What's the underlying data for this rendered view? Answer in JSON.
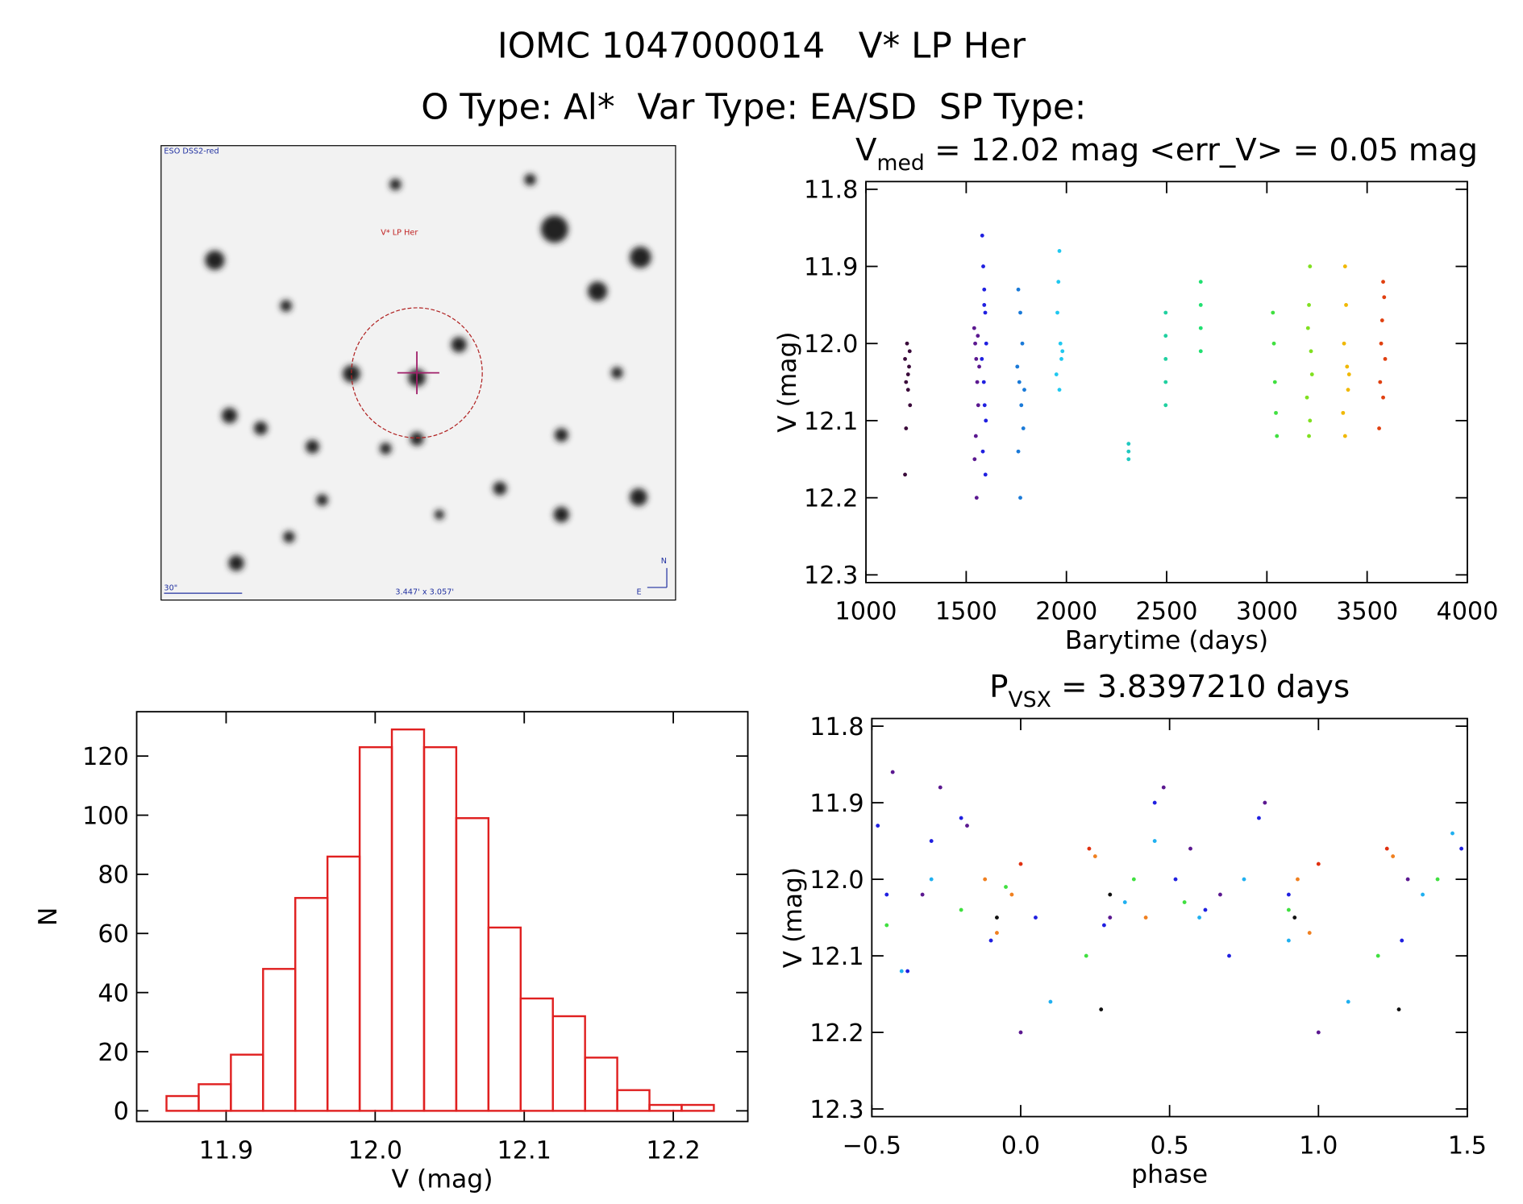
{
  "title": "IOMC 1047000014   V* LP Her",
  "subtitle": "O Type: Al*  Var Type: EA/SD  SP Type:",
  "finder": {
    "survey": "ESO DSS2-red",
    "target": "V* LP Her",
    "scale": "30\"",
    "size": "3.447' x 3.057'",
    "north": "N",
    "east": "E"
  },
  "chart_data": [
    {
      "type": "scatter",
      "title": "V",
      "title_subscript": "med",
      "title_rest": " = 12.02 mag <err_V> = 0.05 mag",
      "x_label": "Barytime (days)",
      "y_label": "V (mag)",
      "xlim": [
        1000,
        4000
      ],
      "xticks": [
        1000,
        1500,
        2000,
        2500,
        3000,
        3500,
        4000
      ],
      "ylim": [
        12.31,
        11.79
      ],
      "yticks": [
        11.8,
        11.9,
        {
          "value": 12,
          "label": "12.0"
        },
        12.1,
        12.2,
        12.3
      ],
      "series": [
        {
          "color": "#3a0a3a",
          "x": [
            1195,
            1200,
            1205,
            1210,
            1215,
            1220,
            1200,
            1210,
            1195,
            1218
          ],
          "values": [
            12.02,
            12.05,
            12.0,
            12.04,
            12.03,
            12.08,
            12.11,
            12.06,
            12.17,
            12.01
          ]
        },
        {
          "color": "#5b1890",
          "x": [
            1540,
            1545,
            1550,
            1555,
            1560,
            1548,
            1542,
            1552,
            1558,
            1565
          ],
          "values": [
            11.98,
            12.0,
            12.02,
            12.05,
            12.08,
            12.12,
            12.15,
            12.2,
            11.99,
            12.03
          ]
        },
        {
          "color": "#2020e0",
          "x": [
            1580,
            1585,
            1590,
            1595,
            1600,
            1578,
            1588,
            1592,
            1598,
            1583,
            1596,
            1590
          ],
          "values": [
            11.86,
            11.9,
            11.93,
            11.96,
            12.0,
            12.02,
            12.05,
            12.08,
            12.1,
            12.14,
            12.17,
            11.95
          ]
        },
        {
          "color": "#1a7ad8",
          "x": [
            1760,
            1770,
            1780,
            1755,
            1765,
            1775,
            1785,
            1760,
            1770,
            1790
          ],
          "values": [
            11.93,
            11.96,
            12.0,
            12.03,
            12.05,
            12.08,
            12.11,
            12.14,
            12.2,
            12.06
          ]
        },
        {
          "color": "#20c8f0",
          "x": [
            1965,
            1960,
            1955,
            1970,
            1975,
            1950,
            1965,
            1980
          ],
          "values": [
            11.88,
            11.92,
            11.96,
            12.0,
            12.02,
            12.04,
            12.06,
            12.01
          ]
        },
        {
          "color": "#20c8c0",
          "x": [
            2310,
            2310,
            2310
          ],
          "values": [
            12.13,
            12.14,
            12.15
          ]
        },
        {
          "color": "#20d0a0",
          "x": [
            2495,
            2495,
            2495,
            2495,
            2495
          ],
          "values": [
            11.96,
            11.99,
            12.02,
            12.05,
            12.08
          ]
        },
        {
          "color": "#20e070",
          "x": [
            2670,
            2670,
            2670,
            2670
          ],
          "values": [
            11.92,
            11.95,
            11.98,
            12.01
          ]
        },
        {
          "color": "#40e040",
          "x": [
            3030,
            3035,
            3040,
            3045,
            3050
          ],
          "values": [
            11.96,
            12.0,
            12.05,
            12.09,
            12.12
          ]
        },
        {
          "color": "#80e020",
          "x": [
            3215,
            3210,
            3205,
            3220,
            3225,
            3200,
            3215,
            3210
          ],
          "values": [
            11.9,
            11.95,
            11.98,
            12.01,
            12.04,
            12.07,
            12.1,
            12.12
          ]
        },
        {
          "color": "#f0b800",
          "x": [
            3390,
            3395,
            3385,
            3400,
            3405,
            3380,
            3390,
            3410
          ],
          "values": [
            11.9,
            11.95,
            12.0,
            12.03,
            12.06,
            12.09,
            12.12,
            12.04
          ]
        },
        {
          "color": "#e04010",
          "x": [
            3580,
            3585,
            3575,
            3570,
            3590,
            3565,
            3580,
            3560
          ],
          "values": [
            11.92,
            11.94,
            11.97,
            12.0,
            12.02,
            12.05,
            12.07,
            12.11
          ]
        }
      ]
    },
    {
      "type": "scatter",
      "title": "P",
      "title_subscript": "VSX",
      "title_rest": " = 3.8397210 days",
      "x_label": "phase",
      "y_label": "V (mag)",
      "xlim": [
        -0.5,
        1.5
      ],
      "xticks": [
        {
          "value": -0.5,
          "label": "−0.5"
        },
        {
          "value": 0,
          "label": "0.0"
        },
        0.5,
        {
          "value": 1,
          "label": "1.0"
        },
        1.5
      ],
      "ylim": [
        12.31,
        11.79
      ],
      "yticks": [
        11.8,
        11.9,
        {
          "value": 12,
          "label": "12.0"
        },
        12.1,
        12.2,
        12.3
      ],
      "series": [
        {
          "color": "#2020e0",
          "x": [
            -0.48,
            -0.45,
            -0.38,
            -0.3,
            -0.2,
            -0.1,
            0.05,
            0.28,
            0.45,
            0.52,
            0.62,
            0.7,
            0.8,
            0.9,
            1.28,
            1.48
          ],
          "values": [
            11.93,
            12.02,
            12.12,
            11.95,
            11.92,
            12.08,
            12.05,
            12.06,
            11.9,
            12.0,
            12.04,
            12.1,
            11.92,
            12.02,
            12.08,
            11.96
          ]
        },
        {
          "color": "#5b1890",
          "x": [
            -0.43,
            -0.33,
            -0.27,
            -0.18,
            0.0,
            0.3,
            0.48,
            0.57,
            0.67,
            0.82,
            1.0,
            1.3
          ],
          "values": [
            11.86,
            12.02,
            11.88,
            11.93,
            12.2,
            12.05,
            11.88,
            11.96,
            12.02,
            11.9,
            12.2,
            12.0
          ]
        },
        {
          "color": "#20b0f0",
          "x": [
            -0.4,
            -0.3,
            0.1,
            0.35,
            0.45,
            0.6,
            0.75,
            0.9,
            1.1,
            1.35,
            1.45
          ],
          "values": [
            12.12,
            12.0,
            12.16,
            12.03,
            11.95,
            12.05,
            12.0,
            12.08,
            12.16,
            12.02,
            11.94
          ]
        },
        {
          "color": "#f08020",
          "x": [
            -0.12,
            -0.08,
            -0.03,
            0.25,
            0.42,
            0.93,
            0.97,
            1.25
          ],
          "values": [
            12.0,
            12.07,
            12.02,
            11.97,
            12.05,
            12.0,
            12.07,
            11.97
          ]
        },
        {
          "color": "#40e040",
          "x": [
            -0.45,
            -0.2,
            -0.05,
            0.22,
            0.38,
            0.55,
            0.9,
            1.2,
            1.4
          ],
          "values": [
            12.06,
            12.04,
            12.01,
            12.1,
            12.0,
            12.03,
            12.04,
            12.1,
            12.0
          ]
        },
        {
          "color": "#e03010",
          "x": [
            0.0,
            0.23,
            1.0,
            1.23
          ],
          "values": [
            11.98,
            11.96,
            11.98,
            11.96
          ]
        },
        {
          "color": "#101010",
          "x": [
            -0.08,
            0.27,
            0.3,
            0.92,
            1.27
          ],
          "values": [
            12.05,
            12.17,
            12.02,
            12.05,
            12.17
          ]
        }
      ]
    },
    {
      "type": "histogram",
      "x_label": "V (mag)",
      "y_label": "N",
      "color": "#e02020",
      "bins": [
        11.86,
        11.8816,
        11.9032,
        11.9248,
        11.9464,
        11.968,
        11.9896,
        12.0112,
        12.0328,
        12.0544,
        12.076,
        12.0976,
        12.1192,
        12.1408,
        12.1624,
        12.184,
        12.2056,
        12.2272
      ],
      "values": [
        5,
        9,
        19,
        48,
        72,
        86,
        123,
        129,
        123,
        99,
        62,
        38,
        32,
        18,
        7,
        2,
        2
      ],
      "xlim": [
        11.84,
        12.25
      ],
      "xticks": [
        11.9,
        {
          "value": 12,
          "label": "12.0"
        },
        12.1,
        12.2
      ],
      "ylim": [
        -3.6,
        135
      ],
      "yticks": [
        0,
        20,
        40,
        60,
        80,
        100,
        120
      ]
    }
  ]
}
